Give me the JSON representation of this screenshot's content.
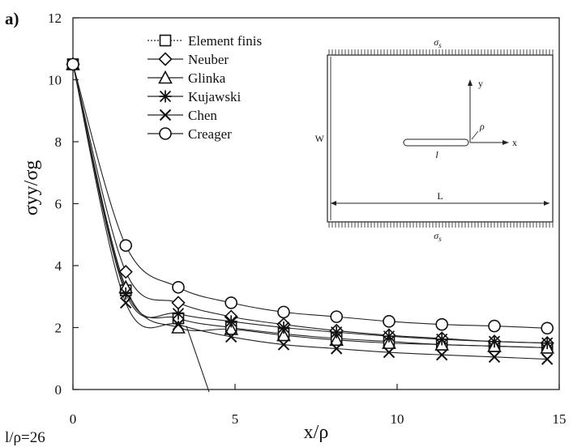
{
  "panel_label": "a)",
  "note": "l/ρ=26",
  "chart_data": {
    "type": "line",
    "xlabel": "x/ρ",
    "ylabel": "σyy/σg",
    "xlim": [
      0,
      15
    ],
    "ylim": [
      0,
      12
    ],
    "xticks": [
      "0",
      "5",
      "10",
      "15"
    ],
    "yticks": [
      "0",
      "2",
      "4",
      "6",
      "8",
      "10",
      "12"
    ],
    "grid": false,
    "legend_position": "top-left",
    "x": [
      0,
      1.63,
      3.25,
      4.88,
      6.5,
      8.13,
      9.75,
      11.38,
      13.0,
      14.63
    ],
    "series": [
      {
        "name": "Element finis",
        "marker": "square",
        "values": [
          10.5,
          3.2,
          2.3,
          2.0,
          1.8,
          1.65,
          1.55,
          1.45,
          1.4,
          1.35
        ]
      },
      {
        "name": "Neuber",
        "marker": "diamond",
        "values": [
          10.5,
          3.8,
          2.8,
          2.35,
          2.1,
          1.9,
          1.75,
          1.65,
          1.55,
          1.5
        ]
      },
      {
        "name": "Glinka",
        "marker": "triangle",
        "values": [
          10.5,
          3.3,
          2.0,
          1.95,
          1.75,
          1.6,
          1.5,
          1.45,
          1.4,
          1.35
        ]
      },
      {
        "name": "Kujawski",
        "marker": "asterisk",
        "values": [
          10.5,
          3.1,
          2.45,
          2.2,
          2.0,
          1.85,
          1.72,
          1.62,
          1.55,
          1.5
        ]
      },
      {
        "name": "Chen",
        "marker": "cross",
        "values": [
          10.5,
          2.8,
          2.1,
          1.7,
          1.45,
          1.32,
          1.2,
          1.12,
          1.05,
          0.98
        ]
      },
      {
        "name": "Creager",
        "marker": "circle",
        "values": [
          10.5,
          4.65,
          3.3,
          2.8,
          2.5,
          2.35,
          2.2,
          2.1,
          2.05,
          1.98
        ]
      }
    ]
  },
  "inset": {
    "sigma_label": "σ",
    "sigma_subscript": "s",
    "y_label": "y",
    "x_label": "x",
    "rho_label": "ρ",
    "l_label": "l",
    "w_label": "W",
    "L_label": "L"
  }
}
